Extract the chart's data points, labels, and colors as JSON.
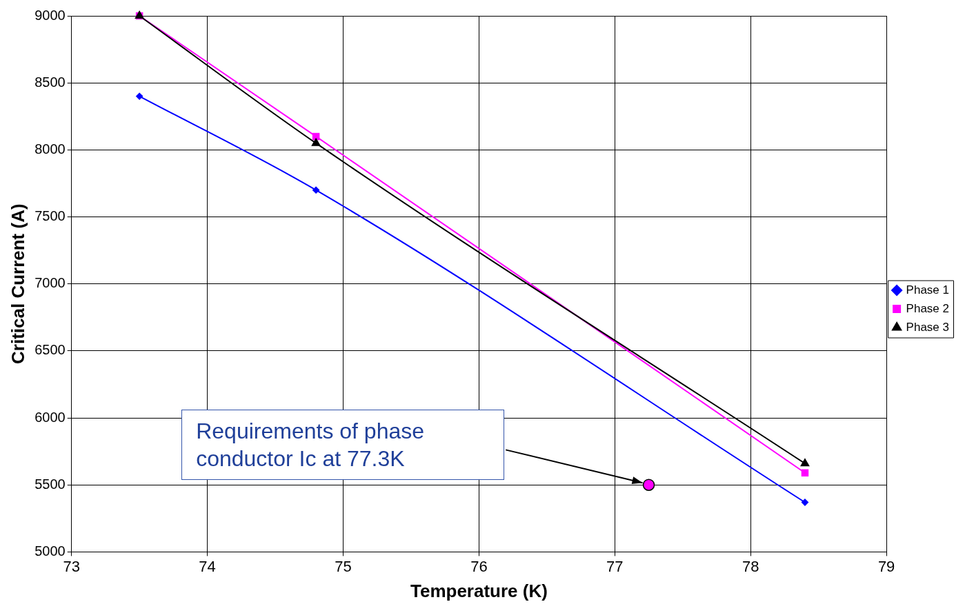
{
  "chart_data": {
    "type": "line",
    "xlabel": "Temperature (K)",
    "ylabel": "Critical Current (A)",
    "xlim": [
      73,
      79
    ],
    "xticks": [
      73,
      74,
      75,
      76,
      77,
      78,
      79
    ],
    "ylim": [
      5000,
      9000
    ],
    "yticks": [
      5000,
      5500,
      6000,
      6500,
      7000,
      7500,
      8000,
      8500,
      9000
    ],
    "grid": true,
    "legend": "right",
    "series": [
      {
        "name": "Phase 1",
        "color": "#0000ff",
        "marker": "diamond",
        "x": [
          73.5,
          74.8,
          78.4
        ],
        "values": [
          8400,
          7700,
          5370
        ]
      },
      {
        "name": "Phase 2",
        "color": "#ff00ff",
        "marker": "square",
        "x": [
          73.5,
          74.8,
          78.4
        ],
        "values": [
          9000,
          8100,
          5590
        ]
      },
      {
        "name": "Phase 3",
        "color": "#000000",
        "marker": "triangle",
        "x": [
          73.5,
          74.8,
          78.4
        ],
        "values": [
          9000,
          8050,
          5660
        ]
      },
      {
        "type": "scatter",
        "color": "#ff00ff",
        "marker": "circle",
        "x": [
          77.25
        ],
        "values": [
          5500
        ]
      }
    ],
    "annotations": [
      "Requirements of phase conductor  Ic at 77.3K"
    ]
  }
}
